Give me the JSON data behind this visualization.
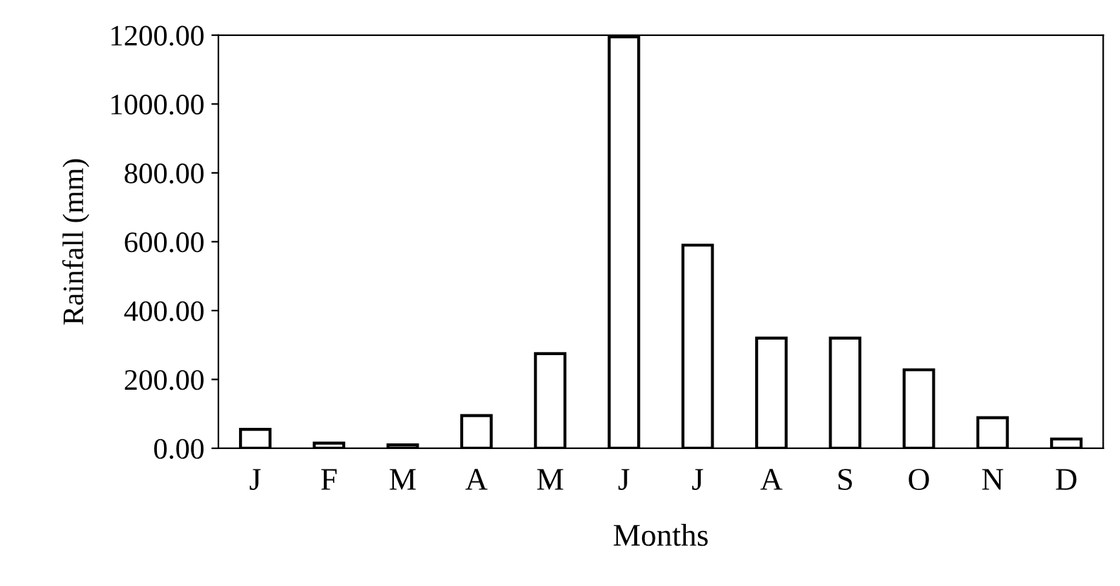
{
  "chart_data": {
    "type": "bar",
    "xlabel": "Months",
    "ylabel": "Rainfall (mm)",
    "categories": [
      "J",
      "F",
      "M",
      "A",
      "M",
      "J",
      "J",
      "A",
      "S",
      "O",
      "N",
      "D"
    ],
    "values": [
      55,
      15,
      10,
      95,
      275,
      1195,
      590,
      320,
      320,
      228,
      89,
      27
    ],
    "color": "#ffffff",
    "ylim": [
      0,
      1200
    ],
    "yticks": [
      {
        "value": 0,
        "label": "0.00"
      },
      {
        "value": 200,
        "label": "200.00"
      },
      {
        "value": 400,
        "label": "400.00"
      },
      {
        "value": 600,
        "label": "600.00"
      },
      {
        "value": 800,
        "label": "800.00"
      },
      {
        "value": 1000,
        "label": "1000.00"
      },
      {
        "value": 1200,
        "label": "1200.00"
      }
    ],
    "grid": false,
    "legend": false
  }
}
